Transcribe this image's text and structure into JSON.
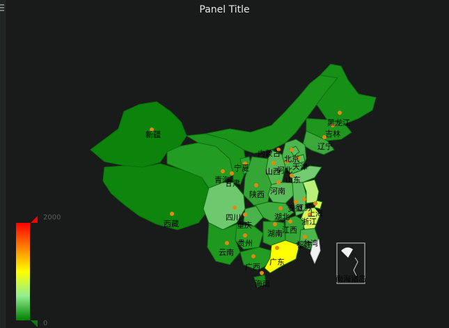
{
  "panel": {
    "title": "Panel Title"
  },
  "legend": {
    "max_label": "2000",
    "min_label": "0",
    "colors": [
      "#ff0000",
      "#ffff00",
      "#90ee90",
      "#008000"
    ]
  },
  "colors": {
    "background": "#181b1a",
    "province_dark": "#0f8a0f",
    "province_mid": "#239a23",
    "province_light": "#6cc86c",
    "province_pale": "#a8e8a0",
    "province_yellow": "#f3f95b",
    "province_bright_yellow": "#ffff00",
    "marker": "#e08a10"
  },
  "provinces": [
    {
      "name": "新疆",
      "color": "#0c840c"
    },
    {
      "name": "西藏",
      "color": "#0e860e"
    },
    {
      "name": "青海",
      "color": "#229c22"
    },
    {
      "name": "甘肃",
      "color": "#1d961d"
    },
    {
      "name": "宁夏",
      "color": "#2fa42f"
    },
    {
      "name": "内蒙古",
      "color": "#1a951a"
    },
    {
      "name": "黑龙江",
      "color": "#179017"
    },
    {
      "name": "吉林",
      "color": "#1f971f"
    },
    {
      "name": "辽宁",
      "color": "#3aa83a"
    },
    {
      "name": "北京",
      "color": "#5cbf5c"
    },
    {
      "name": "天津",
      "color": "#66c366"
    },
    {
      "name": "河北",
      "color": "#4fb54f"
    },
    {
      "name": "山西",
      "color": "#56b956"
    },
    {
      "name": "山东",
      "color": "#74cb74"
    },
    {
      "name": "陕西",
      "color": "#35a535"
    },
    {
      "name": "河南",
      "color": "#5abd5a"
    },
    {
      "name": "四川",
      "color": "#6ec96e"
    },
    {
      "name": "重庆",
      "color": "#4cb34c"
    },
    {
      "name": "湖北",
      "color": "#3dab3d"
    },
    {
      "name": "安徽",
      "color": "#5fbe5f"
    },
    {
      "name": "江苏",
      "color": "#b9ef7a"
    },
    {
      "name": "上海",
      "color": "#e4f55a"
    },
    {
      "name": "浙江",
      "color": "#d6f45e"
    },
    {
      "name": "湖南",
      "color": "#2da22d"
    },
    {
      "name": "江西",
      "color": "#35a535"
    },
    {
      "name": "贵州",
      "color": "#279f27"
    },
    {
      "name": "云南",
      "color": "#1f981f"
    },
    {
      "name": "广西",
      "color": "#229b22"
    },
    {
      "name": "广东",
      "color": "#ffff00"
    },
    {
      "name": "福建",
      "color": "#4fb64f"
    },
    {
      "name": "海南",
      "color": "#1b8e1b"
    },
    {
      "name": "台湾",
      "color": "#f2f2f2"
    },
    {
      "name": "南海诸岛",
      "color": "#f2f2f2"
    }
  ]
}
